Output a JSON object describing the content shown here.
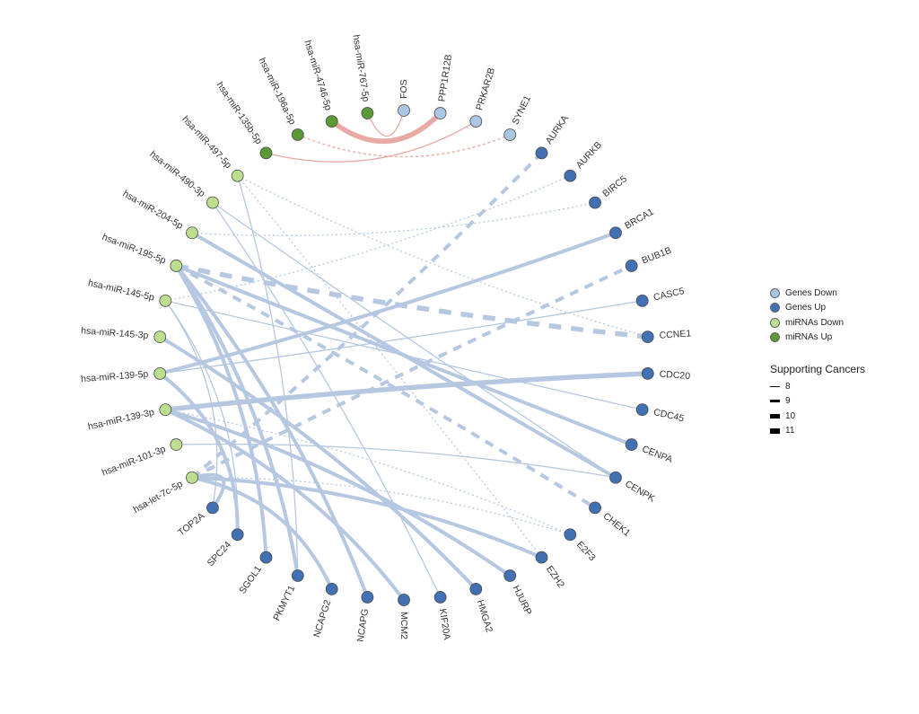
{
  "colors": {
    "genes_down": "#a9c6e2",
    "genes_up": "#4271b3",
    "mirnas_down": "#bcdf8f",
    "mirnas_up": "#5b9a37",
    "edge_blue": "#b6c8e1",
    "edge_red": "#e8aaa4"
  },
  "legend": {
    "groups": [
      {
        "label": "Genes Down",
        "group": "genes_down"
      },
      {
        "label": "Genes Up",
        "group": "genes_up"
      },
      {
        "label": "miRNAs Down",
        "group": "mirnas_down"
      },
      {
        "label": "miRNAs Up",
        "group": "mirnas_up"
      }
    ],
    "weight_title": "Supporting Cancers",
    "weights": [
      "8",
      "9",
      "10",
      "11"
    ]
  },
  "nodes": [
    {
      "name": "FOS",
      "group": "genes_down"
    },
    {
      "name": "PPP1R12B",
      "group": "genes_down"
    },
    {
      "name": "PRKAR2B",
      "group": "genes_down"
    },
    {
      "name": "SYNE1",
      "group": "genes_down"
    },
    {
      "name": "AURKA",
      "group": "genes_up"
    },
    {
      "name": "AURKB",
      "group": "genes_up"
    },
    {
      "name": "BIRC5",
      "group": "genes_up"
    },
    {
      "name": "BRCA1",
      "group": "genes_up"
    },
    {
      "name": "BUB1B",
      "group": "genes_up"
    },
    {
      "name": "CASC5",
      "group": "genes_up"
    },
    {
      "name": "CCNE1",
      "group": "genes_up"
    },
    {
      "name": "CDC20",
      "group": "genes_up"
    },
    {
      "name": "CDC45",
      "group": "genes_up"
    },
    {
      "name": "CENPA",
      "group": "genes_up"
    },
    {
      "name": "CENPK",
      "group": "genes_up"
    },
    {
      "name": "CHEK1",
      "group": "genes_up"
    },
    {
      "name": "E2F3",
      "group": "genes_up"
    },
    {
      "name": "EZH2",
      "group": "genes_up"
    },
    {
      "name": "HJURP",
      "group": "genes_up"
    },
    {
      "name": "HMGA2",
      "group": "genes_up"
    },
    {
      "name": "KIF20A",
      "group": "genes_up"
    },
    {
      "name": "MCM2",
      "group": "genes_up"
    },
    {
      "name": "NCAPG",
      "group": "genes_up"
    },
    {
      "name": "NCAPG2",
      "group": "genes_up"
    },
    {
      "name": "PKMYT1",
      "group": "genes_up"
    },
    {
      "name": "SGOL1",
      "group": "genes_up"
    },
    {
      "name": "SPC24",
      "group": "genes_up"
    },
    {
      "name": "TOP2A",
      "group": "genes_up"
    },
    {
      "name": "hsa-let-7c-5p",
      "group": "mirnas_down"
    },
    {
      "name": "hsa-miR-101-3p",
      "group": "mirnas_down"
    },
    {
      "name": "hsa-miR-139-3p",
      "group": "mirnas_down"
    },
    {
      "name": "hsa-miR-139-5p",
      "group": "mirnas_down"
    },
    {
      "name": "hsa-miR-145-3p",
      "group": "mirnas_down"
    },
    {
      "name": "hsa-miR-145-5p",
      "group": "mirnas_down"
    },
    {
      "name": "hsa-miR-195-5p",
      "group": "mirnas_down"
    },
    {
      "name": "hsa-miR-204-5p",
      "group": "mirnas_down"
    },
    {
      "name": "hsa-miR-490-3p",
      "group": "mirnas_down"
    },
    {
      "name": "hsa-miR-497-5p",
      "group": "mirnas_down"
    },
    {
      "name": "hsa-miR-135b-5p",
      "group": "mirnas_up"
    },
    {
      "name": "hsa-miR-196a-5p",
      "group": "mirnas_up"
    },
    {
      "name": "hsa-miR-4746-5p",
      "group": "mirnas_up"
    },
    {
      "name": "hsa-miR-767-5p",
      "group": "mirnas_up"
    }
  ],
  "edges": [
    {
      "source": "hsa-miR-767-5p",
      "target": "FOS",
      "weight": 8,
      "style": "solid"
    },
    {
      "source": "hsa-miR-4746-5p",
      "target": "PPP1R12B",
      "weight": 11,
      "style": "solid"
    },
    {
      "source": "hsa-miR-135b-5p",
      "target": "PRKAR2B",
      "weight": 8,
      "style": "solid"
    },
    {
      "source": "hsa-miR-196a-5p",
      "target": "SYNE1",
      "weight": 8,
      "style": "dashed"
    },
    {
      "source": "hsa-miR-497-5p",
      "target": "CCNE1",
      "weight": 8,
      "style": "dotted"
    },
    {
      "source": "hsa-miR-497-5p",
      "target": "EZH2",
      "weight": 8,
      "style": "dotted"
    },
    {
      "source": "hsa-miR-497-5p",
      "target": "PKMYT1",
      "weight": 8,
      "style": "solid"
    },
    {
      "source": "hsa-miR-490-3p",
      "target": "KIF20A",
      "weight": 8,
      "style": "solid"
    },
    {
      "source": "hsa-miR-490-3p",
      "target": "CENPK",
      "weight": 8,
      "style": "solid"
    },
    {
      "source": "hsa-miR-204-5p",
      "target": "BIRC5",
      "weight": 8,
      "style": "dotted"
    },
    {
      "source": "hsa-miR-204-5p",
      "target": "CENPK",
      "weight": 10,
      "style": "solid"
    },
    {
      "source": "hsa-miR-195-5p",
      "target": "CCNE1",
      "weight": 11,
      "style": "dashed"
    },
    {
      "source": "hsa-miR-195-5p",
      "target": "CHEK1",
      "weight": 10,
      "style": "dashed"
    },
    {
      "source": "hsa-miR-195-5p",
      "target": "CENPA",
      "weight": 10,
      "style": "solid"
    },
    {
      "source": "hsa-miR-195-5p",
      "target": "SGOL1",
      "weight": 10,
      "style": "solid"
    },
    {
      "source": "hsa-miR-195-5p",
      "target": "NCAPG",
      "weight": 10,
      "style": "solid"
    },
    {
      "source": "hsa-miR-195-5p",
      "target": "PKMYT1",
      "weight": 10,
      "style": "solid"
    },
    {
      "source": "hsa-miR-145-5p",
      "target": "AURKB",
      "weight": 8,
      "style": "dotted"
    },
    {
      "source": "hsa-miR-145-5p",
      "target": "CDC45",
      "weight": 8,
      "style": "solid"
    },
    {
      "source": "hsa-miR-145-5p",
      "target": "TOP2A",
      "weight": 8,
      "style": "solid"
    },
    {
      "source": "hsa-miR-145-5p",
      "target": "SPC24",
      "weight": 8,
      "style": "solid"
    },
    {
      "source": "hsa-miR-145-3p",
      "target": "HMGA2",
      "weight": 10,
      "style": "solid"
    },
    {
      "source": "hsa-miR-139-5p",
      "target": "BRCA1",
      "weight": 10,
      "style": "solid"
    },
    {
      "source": "hsa-miR-139-5p",
      "target": "CASC5",
      "weight": 8,
      "style": "solid"
    },
    {
      "source": "hsa-miR-139-5p",
      "target": "SPC24",
      "weight": 10,
      "style": "solid"
    },
    {
      "source": "hsa-miR-139-3p",
      "target": "CDC20",
      "weight": 11,
      "style": "solid"
    },
    {
      "source": "hsa-miR-139-3p",
      "target": "HJURP",
      "weight": 10,
      "style": "solid"
    },
    {
      "source": "hsa-miR-139-3p",
      "target": "E2F3",
      "weight": 8,
      "style": "dotted"
    },
    {
      "source": "hsa-miR-139-3p",
      "target": "MCM2",
      "weight": 10,
      "style": "solid"
    },
    {
      "source": "hsa-miR-101-3p",
      "target": "CENPK",
      "weight": 8,
      "style": "solid"
    },
    {
      "source": "hsa-let-7c-5p",
      "target": "AURKA",
      "weight": 10,
      "style": "dashed"
    },
    {
      "source": "hsa-let-7c-5p",
      "target": "BUB1B",
      "weight": 10,
      "style": "dashed"
    },
    {
      "source": "hsa-let-7c-5p",
      "target": "EZH2",
      "weight": 10,
      "style": "solid"
    },
    {
      "source": "hsa-let-7c-5p",
      "target": "E2F3",
      "weight": 8,
      "style": "dotted"
    },
    {
      "source": "hsa-let-7c-5p",
      "target": "NCAPG2",
      "weight": 10,
      "style": "solid"
    },
    {
      "source": "hsa-let-7c-5p",
      "target": "TOP2A",
      "weight": 10,
      "style": "solid"
    }
  ]
}
